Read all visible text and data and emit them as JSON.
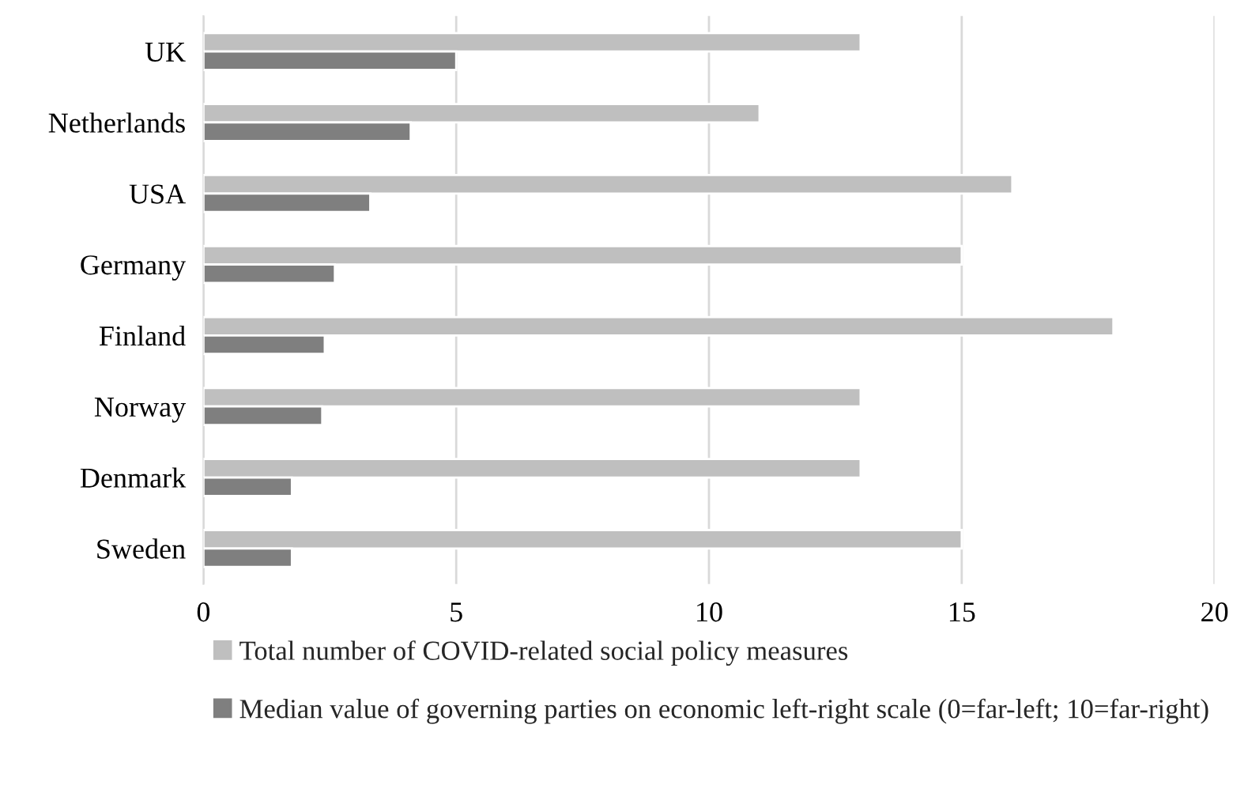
{
  "chart_data": {
    "type": "bar",
    "orientation": "horizontal",
    "categories": [
      "UK",
      "Netherlands",
      "USA",
      "Germany",
      "Finland",
      "Norway",
      "Denmark",
      "Sweden"
    ],
    "series": [
      {
        "name": "Total number of COVID-related social policy measures",
        "color": "#bfbfbf",
        "values": [
          13,
          11,
          16,
          15,
          18,
          13,
          13,
          15
        ]
      },
      {
        "name": "Median value of governing parties on economic left-right scale (0=far-left; 10=far-right)",
        "color": "#7f7f7f",
        "values": [
          5.0,
          4.1,
          3.3,
          2.6,
          2.4,
          2.35,
          1.75,
          1.75
        ]
      }
    ],
    "xlim": [
      0,
      20
    ],
    "xticks": [
      0,
      5,
      10,
      15,
      20
    ],
    "grid": "x",
    "legend": "bottom"
  }
}
